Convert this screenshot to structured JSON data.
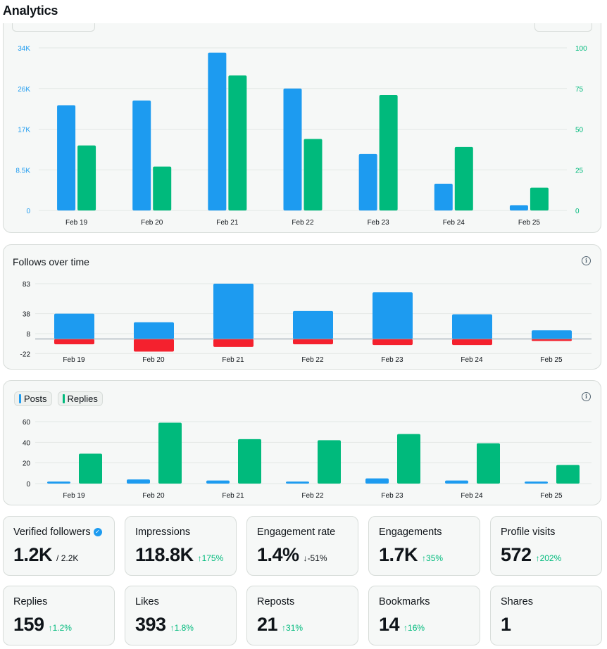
{
  "page": {
    "title": "Analytics"
  },
  "colors": {
    "blue": "#1d9bf0",
    "green": "#00ba7c",
    "red": "#f4212e",
    "grid": "#e3e7e5",
    "axis_text": "#536471"
  },
  "chart_data": [
    {
      "id": "impressions-engagements",
      "type": "bar",
      "title": "",
      "categories": [
        "Feb 19",
        "Feb 20",
        "Feb 21",
        "Feb 22",
        "Feb 23",
        "Feb 24",
        "Feb 25"
      ],
      "series": [
        {
          "values": [
            22000,
            23000,
            33000,
            25500,
            11800,
            5600,
            1100
          ],
          "axis": "left",
          "color": "#1d9bf0"
        },
        {
          "values": [
            40,
            27,
            83,
            44,
            71,
            39,
            14
          ],
          "axis": "right",
          "color": "#00ba7c"
        }
      ],
      "y_left": {
        "ticks": [
          "0",
          "8.5K",
          "17K",
          "26K",
          "34K"
        ],
        "tick_values": [
          0,
          8500,
          17000,
          25500,
          34000
        ],
        "ylim": [
          0,
          34000
        ]
      },
      "y_right": {
        "ticks": [
          "0",
          "25",
          "50",
          "75",
          "100"
        ],
        "tick_values": [
          0,
          25,
          50,
          75,
          100
        ],
        "ylim": [
          0,
          100
        ]
      },
      "grid": true
    },
    {
      "id": "follows",
      "type": "bar",
      "title": "Follows over time",
      "categories": [
        "Feb 19",
        "Feb 20",
        "Feb 21",
        "Feb 22",
        "Feb 23",
        "Feb 24",
        "Feb 25"
      ],
      "series": [
        {
          "values": [
            38,
            25,
            83,
            42,
            70,
            37,
            13
          ],
          "color": "#1d9bf0"
        },
        {
          "values": [
            -8,
            -19,
            -12,
            -8,
            -9,
            -9,
            -3
          ],
          "color": "#f4212e"
        }
      ],
      "y": {
        "ticks": [
          "-22",
          "8",
          "38",
          "83"
        ],
        "tick_values": [
          -22,
          8,
          38,
          83
        ]
      },
      "grid": true
    },
    {
      "id": "posts-replies",
      "type": "bar",
      "title": "",
      "categories": [
        "Feb 19",
        "Feb 20",
        "Feb 21",
        "Feb 22",
        "Feb 23",
        "Feb 24",
        "Feb 25"
      ],
      "series": [
        {
          "name": "Posts",
          "values": [
            2,
            4,
            3,
            2,
            5,
            3,
            2
          ],
          "color": "#1d9bf0"
        },
        {
          "name": "Replies",
          "values": [
            29,
            59,
            43,
            42,
            48,
            39,
            18
          ],
          "color": "#00ba7c"
        }
      ],
      "y": {
        "ticks": [
          "0",
          "20",
          "40",
          "60"
        ],
        "tick_values": [
          0,
          20,
          40,
          60
        ],
        "ylim": [
          0,
          60
        ]
      },
      "grid": true
    }
  ],
  "stats": [
    {
      "label": "Verified followers",
      "value": "1.2K",
      "sub": "/ 2.2K",
      "change": "",
      "verified": true
    },
    {
      "label": "Impressions",
      "value": "118.8K",
      "change": "↑175%",
      "direction": "up"
    },
    {
      "label": "Engagement rate",
      "value": "1.4%",
      "change": "↓-51%",
      "direction": "down"
    },
    {
      "label": "Engagements",
      "value": "1.7K",
      "change": "↑35%",
      "direction": "up"
    },
    {
      "label": "Profile visits",
      "value": "572",
      "change": "↑202%",
      "direction": "up"
    },
    {
      "label": "Replies",
      "value": "159",
      "change": "↑1.2%",
      "direction": "up"
    },
    {
      "label": "Likes",
      "value": "393",
      "change": "↑1.8%",
      "direction": "up"
    },
    {
      "label": "Reposts",
      "value": "21",
      "change": "↑31%",
      "direction": "up"
    },
    {
      "label": "Bookmarks",
      "value": "14",
      "change": "↑16%",
      "direction": "up"
    },
    {
      "label": "Shares",
      "value": "1",
      "change": "",
      "direction": "up"
    }
  ],
  "icons": {
    "info": "info-icon",
    "verified": "verified-badge-icon"
  }
}
